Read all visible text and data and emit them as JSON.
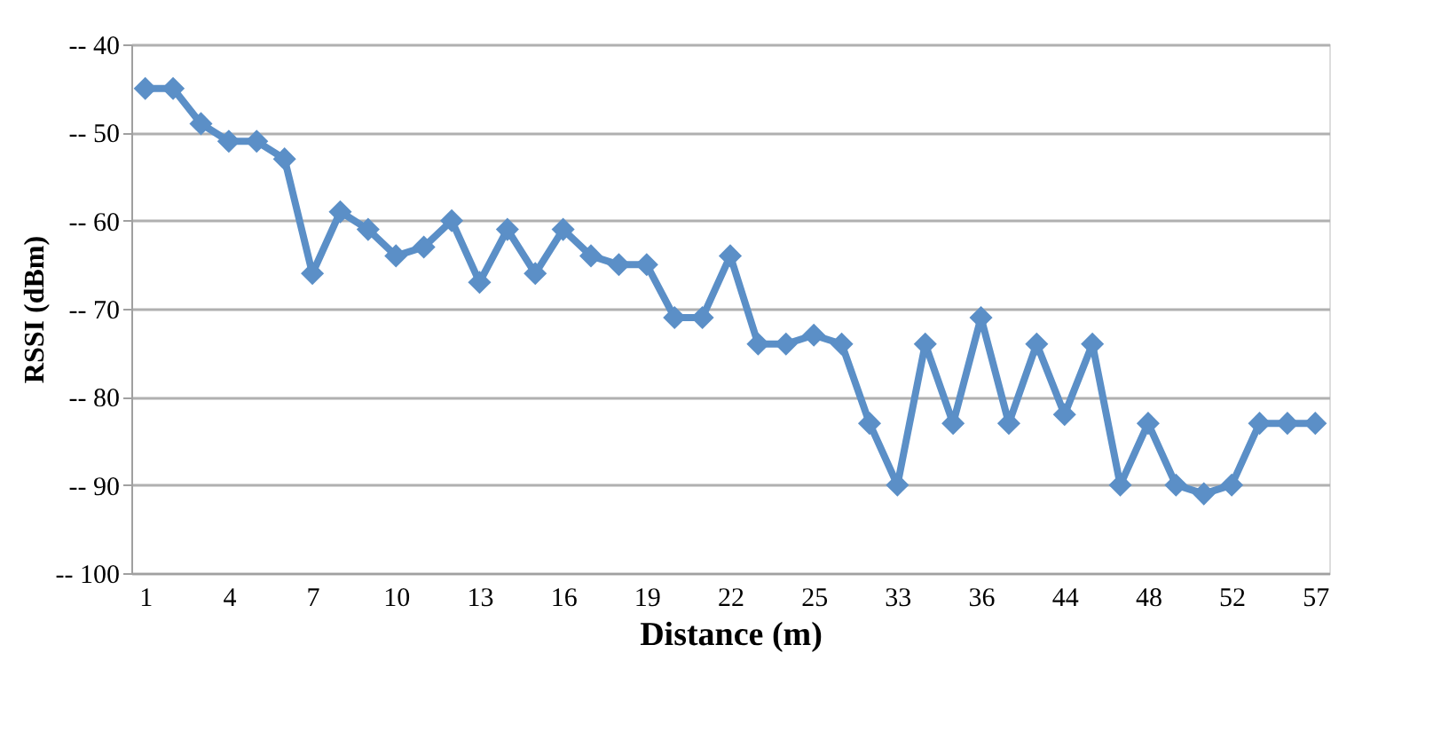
{
  "chart_data": {
    "type": "line",
    "xlabel": "Distance (m)",
    "ylabel": "RSSI (dBm)",
    "categories": [
      "1",
      null,
      null,
      "4",
      null,
      null,
      "7",
      null,
      null,
      "10",
      null,
      null,
      "13",
      null,
      null,
      "16",
      null,
      null,
      "19",
      null,
      null,
      "22",
      null,
      null,
      "25",
      null,
      null,
      "33",
      null,
      null,
      "36",
      null,
      null,
      "44",
      null,
      null,
      "48",
      null,
      null,
      "52",
      null,
      null,
      "57"
    ],
    "series": [
      {
        "color": "#5b8fc7",
        "values": [
          -45,
          -45,
          -49,
          -51,
          -51,
          -53,
          -66,
          -59,
          -61,
          -64,
          -63,
          -60,
          -67,
          -61,
          -66,
          -61,
          -64,
          -65,
          -65,
          -71,
          -71,
          -64,
          -74,
          -74,
          -73,
          -74,
          -83,
          -90,
          -74,
          -83,
          -71,
          -83,
          -74,
          -82,
          -74,
          -90,
          -83,
          -90,
          -91,
          -90,
          -83,
          -83,
          -83
        ]
      }
    ],
    "ylim": [
      -100,
      -40
    ],
    "yticks": [
      {
        "value": -40,
        "label": "-- 40"
      },
      {
        "value": -50,
        "label": "-- 50"
      },
      {
        "value": -60,
        "label": "-- 60"
      },
      {
        "value": -70,
        "label": "-- 70"
      },
      {
        "value": -80,
        "label": "-- 80"
      },
      {
        "value": -90,
        "label": "-- 90"
      },
      {
        "value": -100,
        "label": "-- 100"
      }
    ],
    "grid": "y",
    "marker": "diamond",
    "line_style": "solid"
  }
}
